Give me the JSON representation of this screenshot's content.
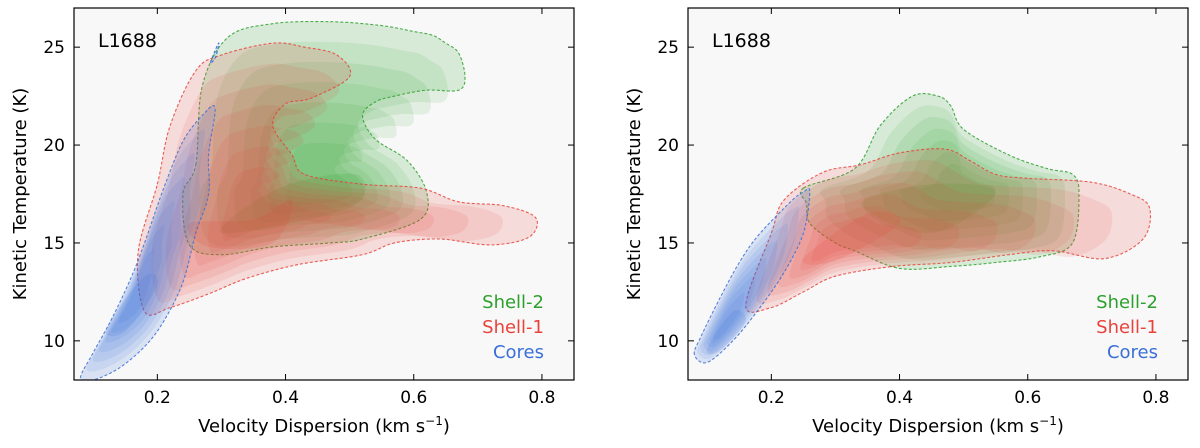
{
  "chart_data": [
    {
      "type": "contour",
      "panel_label": "L1688",
      "xlabel_base": "Velocity Dispersion (km s",
      "xlabel_sup": "−1",
      "xlabel_close": ")",
      "ylabel": "Kinetic Temperature (K)",
      "xlim": [
        0.07,
        0.85
      ],
      "ylim": [
        8,
        27
      ],
      "xticks": [
        0.2,
        0.4,
        0.6,
        0.8
      ],
      "xtick_labels": [
        "0.2",
        "0.4",
        "0.6",
        "0.8"
      ],
      "yticks": [
        10,
        15,
        20,
        25
      ],
      "ytick_labels": [
        "10",
        "15",
        "20",
        "25"
      ],
      "legend_position": "lower-right",
      "series": [
        {
          "name": "Shell-2",
          "color": "#2ca02c",
          "outline": [
            [
              0.26,
              19
            ],
            [
              0.27,
              23
            ],
            [
              0.31,
              25.5
            ],
            [
              0.38,
              26.2
            ],
            [
              0.47,
              26.3
            ],
            [
              0.55,
              26.1
            ],
            [
              0.6,
              25.8
            ],
            [
              0.63,
              25.6
            ],
            [
              0.65,
              25.2
            ],
            [
              0.67,
              24.7
            ],
            [
              0.68,
              23.5
            ],
            [
              0.67,
              22.8
            ],
            [
              0.62,
              22.8
            ],
            [
              0.57,
              22.5
            ],
            [
              0.54,
              22.2
            ],
            [
              0.52,
              21.5
            ],
            [
              0.54,
              20.3
            ],
            [
              0.59,
              19.2
            ],
            [
              0.62,
              17.6
            ],
            [
              0.61,
              16.2
            ],
            [
              0.52,
              15.2
            ],
            [
              0.47,
              15
            ],
            [
              0.38,
              14.8
            ],
            [
              0.3,
              14.4
            ],
            [
              0.25,
              14.9
            ],
            [
              0.24,
              17.5
            ]
          ],
          "core": [
            [
              0.39,
              17.8
            ],
            [
              0.3,
              15.5
            ],
            [
              0.5,
              16.8
            ],
            [
              0.51,
              18.5
            ]
          ],
          "peak": [
            0.46,
            17.8
          ]
        },
        {
          "name": "Shell-1",
          "color": "#e8423a",
          "outline": [
            [
              0.2,
              18
            ],
            [
              0.22,
              21
            ],
            [
              0.26,
              23.8
            ],
            [
              0.3,
              24.6
            ],
            [
              0.38,
              25.2
            ],
            [
              0.43,
              25
            ],
            [
              0.48,
              24.6
            ],
            [
              0.5,
              23.5
            ],
            [
              0.44,
              22.4
            ],
            [
              0.4,
              22.1
            ],
            [
              0.38,
              21
            ],
            [
              0.41,
              19.5
            ],
            [
              0.43,
              18.5
            ],
            [
              0.52,
              18
            ],
            [
              0.61,
              17.8
            ],
            [
              0.67,
              17.1
            ],
            [
              0.74,
              16.9
            ],
            [
              0.79,
              16.3
            ],
            [
              0.78,
              15.3
            ],
            [
              0.72,
              14.9
            ],
            [
              0.64,
              15.2
            ],
            [
              0.57,
              15
            ],
            [
              0.52,
              14.4
            ],
            [
              0.42,
              13.9
            ],
            [
              0.34,
              13.2
            ],
            [
              0.28,
              12.4
            ],
            [
              0.22,
              11.7
            ],
            [
              0.18,
              11.5
            ],
            [
              0.17,
              14.5
            ]
          ],
          "core": [
            [
              0.25,
              16
            ],
            [
              0.35,
              16.2
            ],
            [
              0.41,
              17.2
            ],
            [
              0.38,
              15
            ],
            [
              0.28,
              14.8
            ]
          ],
          "peak": [
            0.35,
            16.5
          ]
        },
        {
          "name": "Cores",
          "color": "#3a6fd8",
          "outline": [
            [
              0.08,
              8.1
            ],
            [
              0.1,
              9.4
            ],
            [
              0.13,
              11.2
            ],
            [
              0.16,
              13.3
            ],
            [
              0.18,
              15
            ],
            [
              0.21,
              17.8
            ],
            [
              0.24,
              20.2
            ],
            [
              0.27,
              21.5
            ],
            [
              0.29,
              21.9
            ],
            [
              0.28,
              19.5
            ],
            [
              0.28,
              17.5
            ],
            [
              0.26,
              15.5
            ],
            [
              0.24,
              13
            ],
            [
              0.21,
              11
            ],
            [
              0.18,
              9.7
            ],
            [
              0.14,
              8.6
            ],
            [
              0.1,
              8
            ]
          ],
          "extra_outline": [
            [
              0.283,
              24.2
            ],
            [
              0.291,
              24.9
            ],
            [
              0.296,
              25.2
            ],
            [
              0.291,
              24.5
            ]
          ],
          "core": [
            [
              0.12,
              10.6
            ],
            [
              0.18,
              13.3
            ],
            [
              0.2,
              12.8
            ],
            [
              0.15,
              10.5
            ]
          ],
          "peak": [
            0.16,
            12
          ]
        }
      ]
    },
    {
      "type": "contour",
      "panel_label": "L1688",
      "xlabel_base": "Velocity Dispersion (km s",
      "xlabel_sup": "−1",
      "xlabel_close": ")",
      "ylabel": "Kinetic Temperature (K)",
      "xlim": [
        0.07,
        0.85
      ],
      "ylim": [
        8,
        27
      ],
      "xticks": [
        0.2,
        0.4,
        0.6,
        0.8
      ],
      "xtick_labels": [
        "0.2",
        "0.4",
        "0.6",
        "0.8"
      ],
      "yticks": [
        10,
        15,
        20,
        25
      ],
      "ytick_labels": [
        "10",
        "15",
        "20",
        "25"
      ],
      "legend_position": "lower-right",
      "series": [
        {
          "name": "Shell-2",
          "color": "#2ca02c",
          "outline": [
            [
              0.25,
              17.8
            ],
            [
              0.33,
              18.8
            ],
            [
              0.37,
              21
            ],
            [
              0.42,
              22.5
            ],
            [
              0.46,
              22.5
            ],
            [
              0.48,
              22
            ],
            [
              0.5,
              20.8
            ],
            [
              0.57,
              19.5
            ],
            [
              0.63,
              18.8
            ],
            [
              0.67,
              18.5
            ],
            [
              0.68,
              17.5
            ],
            [
              0.67,
              15
            ],
            [
              0.62,
              14.3
            ],
            [
              0.55,
              14
            ],
            [
              0.48,
              13.8
            ],
            [
              0.4,
              13.7
            ],
            [
              0.33,
              14.6
            ],
            [
              0.3,
              15
            ],
            [
              0.26,
              16
            ],
            [
              0.255,
              17
            ]
          ],
          "core": [
            [
              0.34,
              17
            ],
            [
              0.45,
              18
            ],
            [
              0.55,
              17.6
            ],
            [
              0.45,
              15.5
            ]
          ],
          "peak": [
            0.5,
            17.7
          ]
        },
        {
          "name": "Shell-1",
          "color": "#e8423a",
          "outline": [
            [
              0.2,
              15.5
            ],
            [
              0.22,
              17.2
            ],
            [
              0.28,
              18.6
            ],
            [
              0.34,
              19
            ],
            [
              0.4,
              19.6
            ],
            [
              0.47,
              19.8
            ],
            [
              0.51,
              19.2
            ],
            [
              0.55,
              18.5
            ],
            [
              0.6,
              18.3
            ],
            [
              0.7,
              18.1
            ],
            [
              0.76,
              17.5
            ],
            [
              0.79,
              16.8
            ],
            [
              0.78,
              15.2
            ],
            [
              0.72,
              14.2
            ],
            [
              0.64,
              14.6
            ],
            [
              0.57,
              14.4
            ],
            [
              0.48,
              14
            ],
            [
              0.39,
              13.8
            ],
            [
              0.3,
              13.3
            ],
            [
              0.25,
              12.5
            ],
            [
              0.2,
              11.7
            ],
            [
              0.16,
              11.8
            ]
          ],
          "core": [
            [
              0.25,
              14.2
            ],
            [
              0.35,
              16.5
            ],
            [
              0.4,
              16
            ],
            [
              0.3,
              14.1
            ]
          ],
          "peak": [
            0.3,
            15
          ]
        },
        {
          "name": "Cores",
          "color": "#3a6fd8",
          "outline": [
            [
              0.08,
              9.3
            ],
            [
              0.09,
              10.2
            ],
            [
              0.12,
              12.2
            ],
            [
              0.15,
              14
            ],
            [
              0.18,
              15.4
            ],
            [
              0.23,
              17.1
            ],
            [
              0.25,
              17.6
            ],
            [
              0.26,
              17.6
            ],
            [
              0.25,
              15.5
            ],
            [
              0.22,
              13.5
            ],
            [
              0.18,
              11.6
            ],
            [
              0.14,
              10
            ],
            [
              0.1,
              8.9
            ]
          ],
          "core": [
            [
              0.1,
              9.6
            ],
            [
              0.14,
              11.5
            ],
            [
              0.16,
              11
            ],
            [
              0.12,
              9.5
            ]
          ],
          "peak": [
            0.12,
            10.5
          ]
        }
      ]
    }
  ]
}
